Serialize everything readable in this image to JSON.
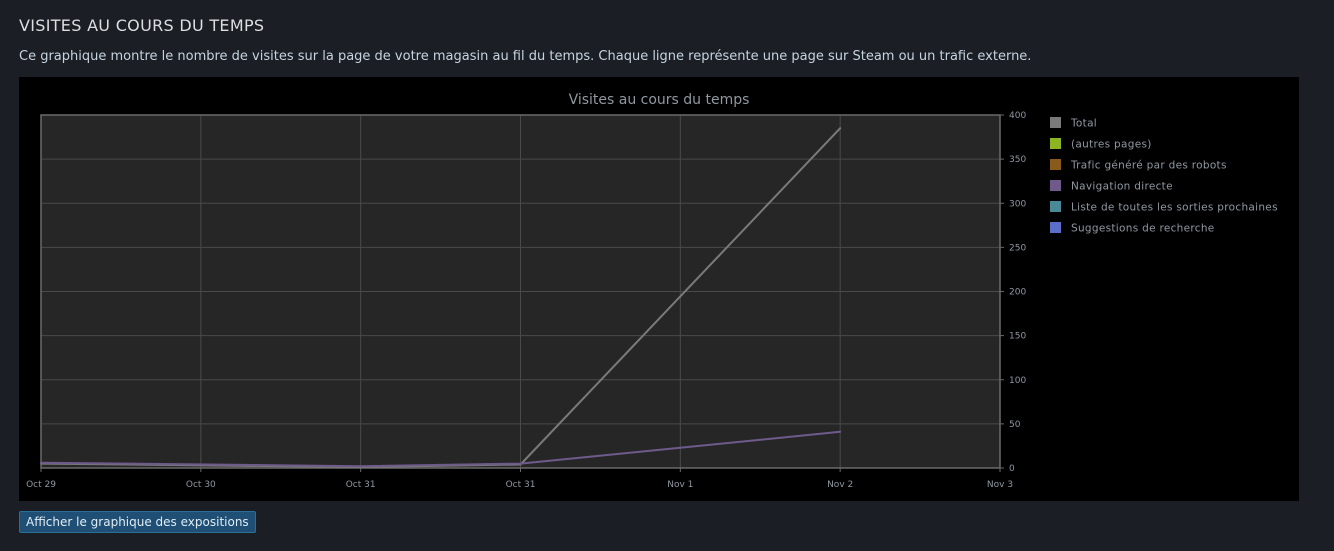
{
  "header": {
    "title": "VISITES AU COURS DU TEMPS",
    "description": "Ce graphique montre le nombre de visites sur la page de votre magasin au fil du temps. Chaque ligne représente une page sur Steam ou un trafic externe."
  },
  "actions": {
    "exposures_button_label": "Afficher le graphique des expositions"
  },
  "chart_data": {
    "type": "line",
    "title": "Visites au cours du temps",
    "xlabel": "",
    "ylabel": "",
    "x_ticks": [
      "Oct 29",
      "Oct 30",
      "Oct 31",
      "Oct 31",
      "Nov 1",
      "Nov 2",
      "Nov 3"
    ],
    "y_ticks": [
      0,
      50,
      100,
      150,
      200,
      250,
      300,
      350,
      400
    ],
    "ylim": [
      0,
      400
    ],
    "y_axis_side": "right",
    "grid": true,
    "legend_position": "right",
    "background": "#262626",
    "series": [
      {
        "name": "Total",
        "color": "#7a7a7a",
        "points": [
          [
            0,
            5
          ],
          [
            2,
            1
          ],
          [
            3,
            4
          ],
          [
            5,
            385
          ]
        ]
      },
      {
        "name": "(autres pages)",
        "color": "#8db522",
        "points": []
      },
      {
        "name": "Trafic généré par des robots",
        "color": "#8a5a1a",
        "points": []
      },
      {
        "name": "Navigation directe",
        "color": "#6f5a8c",
        "points": [
          [
            0,
            6
          ],
          [
            2,
            2
          ],
          [
            3,
            5
          ],
          [
            5,
            41
          ]
        ]
      },
      {
        "name": "Liste de toutes les sorties prochaines",
        "color": "#4a8a98",
        "points": []
      },
      {
        "name": "Suggestions de recherche",
        "color": "#5b6fc8",
        "points": []
      }
    ]
  }
}
